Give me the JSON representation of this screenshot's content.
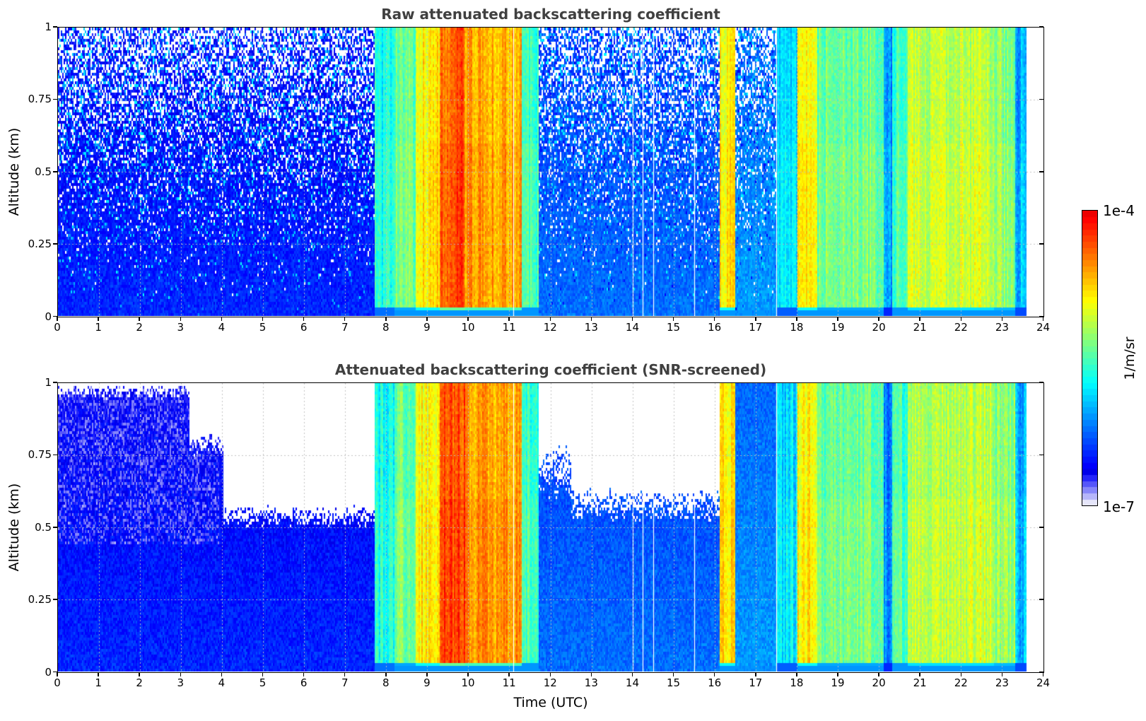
{
  "chart_data": [
    {
      "type": "heatmap",
      "title": "Raw attenuated backscattering coefficient",
      "xlabel": "Time (UTC)",
      "ylabel": "Altitude (km)",
      "xlim": [
        0,
        24
      ],
      "ylim": [
        0,
        1
      ],
      "xticks": [
        "0",
        "1",
        "2",
        "3",
        "4",
        "5",
        "6",
        "7",
        "8",
        "9",
        "10",
        "11",
        "12",
        "13",
        "14",
        "15",
        "16",
        "17",
        "18",
        "19",
        "20",
        "21",
        "22",
        "23",
        "24"
      ],
      "yticks": [
        "0",
        "0.25",
        "0.5",
        "0.75",
        "1"
      ],
      "grid": true,
      "data_end_hour": 23.6,
      "screened": false
    },
    {
      "type": "heatmap",
      "title": "Attenuated backscattering coefficient (SNR-screened)",
      "xlabel": "Time (UTC)",
      "ylabel": "Altitude (km)",
      "xlim": [
        0,
        24
      ],
      "ylim": [
        0,
        1
      ],
      "xticks": [
        "0",
        "1",
        "2",
        "3",
        "4",
        "5",
        "6",
        "7",
        "8",
        "9",
        "10",
        "11",
        "12",
        "13",
        "14",
        "15",
        "16",
        "17",
        "18",
        "19",
        "20",
        "21",
        "22",
        "23",
        "24"
      ],
      "yticks": [
        "0",
        "0.25",
        "0.5",
        "0.75",
        "1"
      ],
      "grid": true,
      "data_end_hour": 23.6,
      "screened": true
    }
  ],
  "colorbar": {
    "label": "1/m/sr",
    "max_label": "1e-4",
    "min_label": "1e-7",
    "scale": "log",
    "range": [
      1e-07,
      0.0001
    ],
    "colormap": "jet"
  },
  "signal_profile": {
    "description_hours": [
      {
        "start": 0.0,
        "end": 7.7,
        "level": 0.12
      },
      {
        "start": 7.7,
        "end": 8.2,
        "level": 0.45
      },
      {
        "start": 8.2,
        "end": 8.7,
        "level": 0.55
      },
      {
        "start": 8.7,
        "end": 9.3,
        "level": 0.72
      },
      {
        "start": 9.3,
        "end": 9.9,
        "level": 0.9
      },
      {
        "start": 9.9,
        "end": 10.5,
        "level": 0.82
      },
      {
        "start": 10.5,
        "end": 11.3,
        "level": 0.8
      },
      {
        "start": 11.3,
        "end": 11.7,
        "level": 0.5
      },
      {
        "start": 11.7,
        "end": 16.1,
        "level": 0.2
      },
      {
        "start": 16.1,
        "end": 16.5,
        "level": 0.72
      },
      {
        "start": 16.5,
        "end": 17.5,
        "level": 0.25
      },
      {
        "start": 17.5,
        "end": 18.0,
        "level": 0.4
      },
      {
        "start": 18.0,
        "end": 18.5,
        "level": 0.72
      },
      {
        "start": 18.5,
        "end": 20.1,
        "level": 0.55
      },
      {
        "start": 20.1,
        "end": 20.3,
        "level": 0.3
      },
      {
        "start": 20.3,
        "end": 20.7,
        "level": 0.5
      },
      {
        "start": 20.7,
        "end": 22.8,
        "level": 0.64
      },
      {
        "start": 22.8,
        "end": 23.3,
        "level": 0.58
      },
      {
        "start": 23.3,
        "end": 23.6,
        "level": 0.35
      }
    ],
    "gap_hours": [
      11.1,
      14.0,
      14.25,
      14.5,
      15.5,
      17.5
    ]
  }
}
